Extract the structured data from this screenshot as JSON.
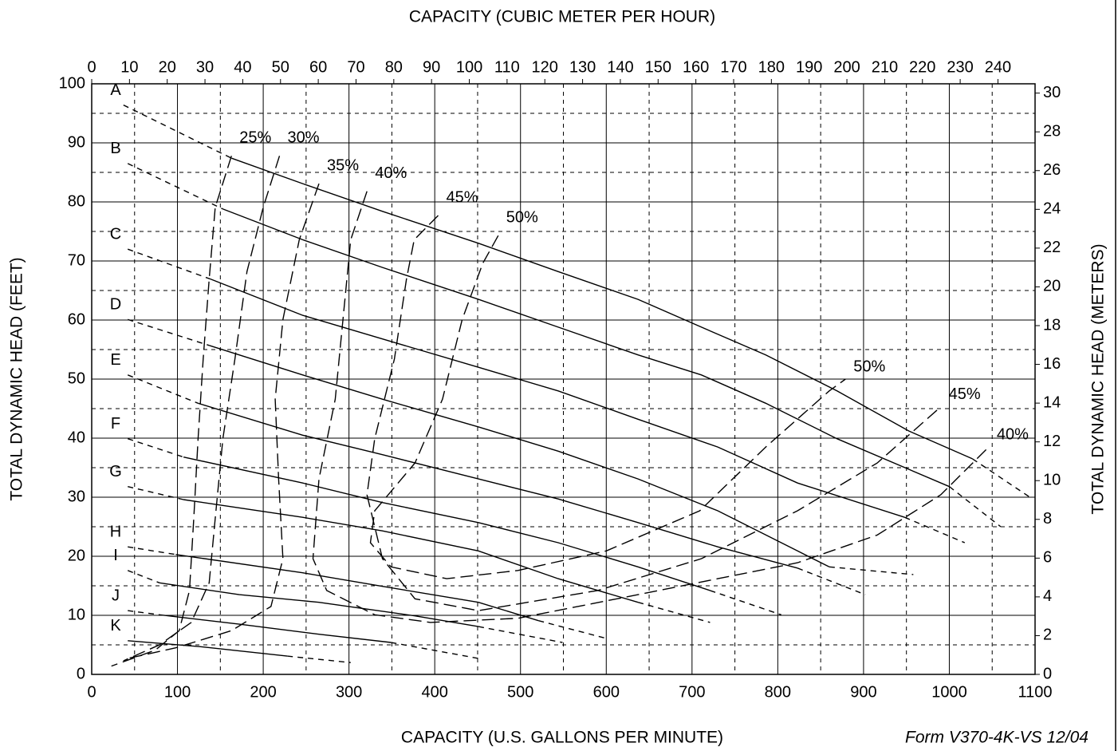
{
  "chart_data": {
    "type": "line",
    "x2label": "CAPACITY (CUBIC METER PER HOUR)",
    "xlabel": "CAPACITY (U.S. GALLONS PER MINUTE)",
    "ylabel": "TOTAL DYNAMIC HEAD (FEET)",
    "y2label": "TOTAL DYNAMIC HEAD (METERS)",
    "footer": "Form V370-4K-VS  12/04",
    "xlim": [
      0,
      1100
    ],
    "xticks": [
      0,
      100,
      200,
      300,
      400,
      500,
      600,
      700,
      800,
      900,
      1000,
      1100
    ],
    "xminorticks": [
      50,
      150,
      250,
      350,
      450,
      550,
      650,
      750,
      850,
      950,
      1050
    ],
    "x2lim": [
      0,
      249.83
    ],
    "x2ticks": [
      0,
      10,
      20,
      30,
      40,
      50,
      60,
      70,
      80,
      90,
      100,
      110,
      120,
      130,
      140,
      150,
      160,
      170,
      180,
      190,
      200,
      210,
      220,
      230,
      240
    ],
    "ylim": [
      0,
      100
    ],
    "yticks": [
      0,
      10,
      20,
      30,
      40,
      50,
      60,
      70,
      80,
      90,
      100
    ],
    "yminorticks": [
      5,
      15,
      25,
      35,
      45,
      55,
      65,
      75,
      85,
      95
    ],
    "y2lim": [
      0,
      30.48
    ],
    "y2ticks": [
      0,
      2,
      4,
      6,
      8,
      10,
      12,
      14,
      16,
      18,
      20,
      22,
      24,
      26,
      28,
      30
    ],
    "grid": true,
    "color": "#000000",
    "series": [
      {
        "name": "A",
        "style": "solid",
        "x": [
          163,
          246,
          339,
          451,
          544,
          637,
          711,
          786,
          869,
          953,
          1027
        ],
        "values": [
          87.4,
          83.1,
          78.4,
          73,
          68.2,
          63.5,
          58.8,
          54.1,
          48,
          41.2,
          36.5
        ],
        "extension": {
          "x": [
            37,
            163,
            null,
            1027,
            1097
          ],
          "values": [
            96.4,
            87.4,
            null,
            36.5,
            29.7
          ]
        }
      },
      {
        "name": "B",
        "style": "solid",
        "x": [
          153,
          246,
          339,
          451,
          544,
          637,
          711,
          786,
          869,
          1000
        ],
        "values": [
          78.8,
          73.6,
          68.9,
          63.5,
          58.8,
          54.1,
          50.7,
          45.9,
          39.9,
          31.8
        ],
        "extension": {
          "x": [
            42,
            153,
            null,
            1000,
            1060
          ],
          "values": [
            86.5,
            78.8,
            null,
            31.8,
            25
          ]
        }
      },
      {
        "name": "C",
        "style": "solid",
        "x": [
          139,
          246,
          339,
          451,
          544,
          637,
          730,
          823,
          948
        ],
        "values": [
          66.9,
          60.8,
          56.8,
          52,
          48,
          43.2,
          38.5,
          32.4,
          26.6
        ],
        "extension": {
          "x": [
            42,
            139,
            null,
            948,
            1018
          ],
          "values": [
            72,
            66.9,
            null,
            26.6,
            22.3
          ]
        }
      },
      {
        "name": "D",
        "style": "solid",
        "x": [
          137,
          246,
          339,
          451,
          544,
          637,
          730,
          823,
          860
        ],
        "values": [
          55.7,
          50.7,
          46.6,
          41.9,
          37.8,
          33.1,
          27.7,
          20.9,
          18.2
        ],
        "extension": {
          "x": [
            42,
            137,
            null,
            860,
            958
          ],
          "values": [
            60.1,
            55.7,
            null,
            18.2,
            16.9
          ]
        }
      },
      {
        "name": "E",
        "style": "solid",
        "x": [
          124,
          246,
          339,
          451,
          544,
          637,
          730,
          823
        ],
        "values": [
          45.9,
          40.5,
          37.2,
          33.1,
          29.7,
          25.7,
          21.6,
          18
        ],
        "extension": {
          "x": [
            42,
            124,
            null,
            823,
            902
          ],
          "values": [
            50.7,
            45.9,
            null,
            18,
            13.5
          ]
        }
      },
      {
        "name": "F",
        "style": "solid",
        "x": [
          107,
          246,
          339,
          451,
          544,
          637,
          721
        ],
        "values": [
          36.8,
          32.4,
          29.1,
          25.7,
          22.3,
          18.2,
          14.2
        ],
        "extension": {
          "x": [
            42,
            107,
            null,
            721,
            804
          ],
          "values": [
            39.9,
            36.8,
            null,
            14.2,
            10.1
          ]
        }
      },
      {
        "name": "G",
        "style": "solid",
        "x": [
          107,
          246,
          339,
          451,
          544,
          637
        ],
        "values": [
          29.6,
          26.6,
          24.3,
          20.9,
          16.2,
          12.2
        ],
        "extension": {
          "x": [
            42,
            107,
            null,
            637,
            721
          ],
          "values": [
            31.8,
            29.6,
            null,
            12.2,
            8.8
          ]
        }
      },
      {
        "name": "H",
        "style": "solid",
        "x": [
          98,
          246,
          339,
          451,
          521
        ],
        "values": [
          20.3,
          17.2,
          14.9,
          12.2,
          9.1
        ],
        "extension": {
          "x": [
            42,
            98,
            null,
            521,
            600
          ],
          "values": [
            21.6,
            20.3,
            null,
            9.1,
            6.1
          ]
        }
      },
      {
        "name": "I",
        "style": "solid",
        "x": [
          79,
          172,
          265,
          377,
          451
        ],
        "values": [
          15.5,
          13.5,
          12.2,
          9.9,
          8.1
        ],
        "extension": {
          "x": [
            42,
            79,
            null,
            451,
            549
          ],
          "values": [
            17.6,
            15.5,
            null,
            8.1,
            5.4
          ]
        }
      },
      {
        "name": "J",
        "style": "solid",
        "x": [
          79,
          172,
          265,
          349
        ],
        "values": [
          10.1,
          8.5,
          6.8,
          5.4
        ],
        "extension": {
          "x": [
            42,
            79,
            null,
            349,
            451
          ],
          "values": [
            10.8,
            10.1,
            null,
            5.4,
            2.7
          ]
        }
      },
      {
        "name": "K",
        "style": "solid",
        "x": [
          42,
          126,
          228
        ],
        "values": [
          5.7,
          4.7,
          3.1
        ],
        "extension": {
          "x": [
            228,
            302
          ],
          "values": [
            3.1,
            2
          ]
        }
      },
      {
        "name": "25%",
        "style": "long-dashed",
        "x": [
          163,
          144,
          137,
          130,
          124,
          119,
          114,
          102,
          74,
          23
        ],
        "values": [
          87.8,
          79.1,
          66.9,
          53.4,
          39.9,
          26.4,
          14.2,
          7.4,
          4.1,
          1.4
        ]
      },
      {
        "name": "30%",
        "style": "long-dashed",
        "x": [
          219,
          200,
          181,
          167,
          153,
          144,
          137,
          116,
          79,
          37
        ],
        "values": [
          87.8,
          79.1,
          68.2,
          53.4,
          39.9,
          26.4,
          15.5,
          8.8,
          5,
          2.3
        ]
      },
      {
        "name": "35%",
        "style": "long-dashed",
        "x": [
          265,
          242,
          223,
          214,
          218,
          223,
          209,
          163,
          98,
          42
        ],
        "values": [
          83.1,
          73.6,
          60.1,
          46.6,
          33.1,
          19.6,
          11.5,
          7.4,
          4.5,
          2.7
        ]
      },
      {
        "name": "40%",
        "style": "long-dashed",
        "x": [
          321,
          302,
          293,
          284,
          265,
          258,
          274,
          330,
          395,
          497,
          637,
          730,
          823,
          916,
          990,
          1046
        ],
        "values": [
          81.8,
          73.6,
          60.1,
          46.6,
          33.1,
          19.6,
          14.2,
          10.1,
          8.8,
          9.5,
          13.5,
          16.2,
          18.9,
          23.6,
          30.4,
          38.5
        ]
      },
      {
        "name": "45%",
        "style": "long-dashed",
        "x": [
          404,
          376,
          367,
          353,
          330,
          321,
          339,
          377,
          451,
          590,
          711,
          823,
          916,
          990
        ],
        "values": [
          77.7,
          73.6,
          66.9,
          53.4,
          39.9,
          30.4,
          19.6,
          12.8,
          10.8,
          14.2,
          19.6,
          27.7,
          35.8,
          45.3
        ]
      },
      {
        "name": "50%",
        "style": "long-dashed",
        "x": [
          474,
          456,
          432,
          409,
          377,
          330,
          325,
          349,
          414,
          497,
          600,
          709,
          786,
          860,
          879
        ],
        "values": [
          74.3,
          69.6,
          60.1,
          46.6,
          35.8,
          27.7,
          22.3,
          18.2,
          16.2,
          17.6,
          20.9,
          27.7,
          38.5,
          48,
          50
        ]
      }
    ]
  }
}
